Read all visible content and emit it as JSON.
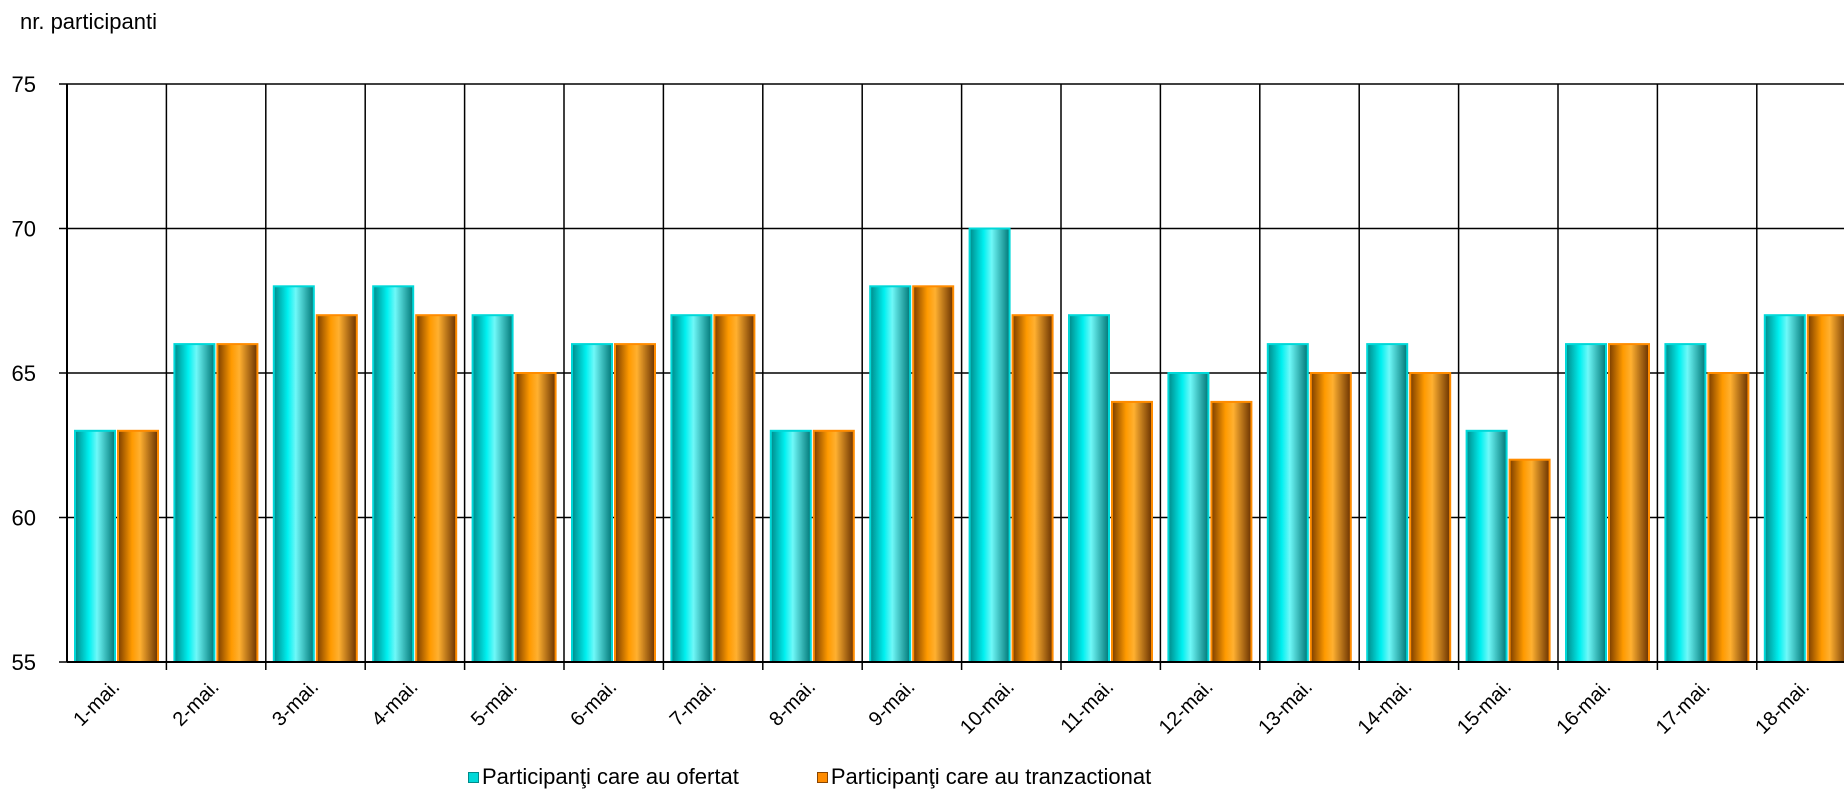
{
  "chart_data": {
    "type": "bar",
    "title": "",
    "xlabel": "",
    "ylabel": "nr. participanti",
    "ylim": [
      55,
      75
    ],
    "yticks": [
      55,
      60,
      65,
      70,
      75
    ],
    "grid": true,
    "legend_position": "bottom",
    "categories": [
      "1-mai.",
      "2-mai.",
      "3-mai.",
      "4-mai.",
      "5-mai.",
      "6-mai.",
      "7-mai.",
      "8-mai.",
      "9-mai.",
      "10-mai.",
      "11-mai.",
      "12-mai.",
      "13-mai.",
      "14-mai.",
      "15-mai.",
      "16-mai.",
      "17-mai.",
      "18-mai."
    ],
    "series": [
      {
        "name": "Participanţi care au ofertat",
        "color": "#00d8d8",
        "values": [
          63,
          66,
          68,
          68,
          67,
          66,
          67,
          63,
          68,
          70,
          67,
          65,
          66,
          66,
          63,
          66,
          66,
          67
        ]
      },
      {
        "name": "Participanţi care au tranzactionat",
        "color": "#ff8c00",
        "values": [
          63,
          66,
          67,
          67,
          65,
          66,
          67,
          63,
          68,
          67,
          64,
          64,
          65,
          65,
          62,
          66,
          65,
          67
        ]
      }
    ]
  }
}
